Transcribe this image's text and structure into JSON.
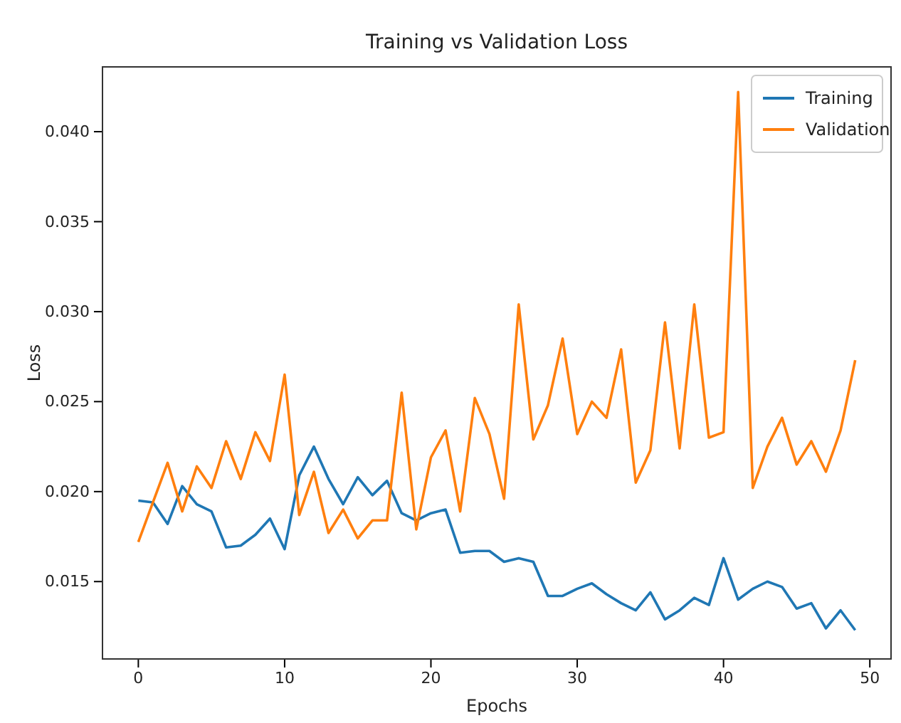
{
  "chart_data": {
    "type": "line",
    "title": "Training vs Validation Loss",
    "xlabel": "Epochs",
    "ylabel": "Loss",
    "x": [
      0,
      1,
      2,
      3,
      4,
      5,
      6,
      7,
      8,
      9,
      10,
      11,
      12,
      13,
      14,
      15,
      16,
      17,
      18,
      19,
      20,
      21,
      22,
      23,
      24,
      25,
      26,
      27,
      28,
      29,
      30,
      31,
      32,
      33,
      34,
      35,
      36,
      37,
      38,
      39,
      40,
      41,
      42,
      43,
      44,
      45,
      46,
      47,
      48,
      49
    ],
    "series": [
      {
        "name": "Training",
        "color": "#1f77b4",
        "values": [
          0.0195,
          0.0194,
          0.0182,
          0.0203,
          0.0193,
          0.0189,
          0.0169,
          0.017,
          0.0176,
          0.0185,
          0.0168,
          0.0209,
          0.0225,
          0.0207,
          0.0193,
          0.0208,
          0.0198,
          0.0206,
          0.0188,
          0.0184,
          0.0188,
          0.019,
          0.0166,
          0.0167,
          0.0167,
          0.0161,
          0.0163,
          0.0161,
          0.0142,
          0.0142,
          0.0146,
          0.0149,
          0.0143,
          0.0138,
          0.0134,
          0.0144,
          0.0129,
          0.0134,
          0.0141,
          0.0137,
          0.0163,
          0.014,
          0.0146,
          0.015,
          0.0147,
          0.0135,
          0.0138,
          0.0124,
          0.0134,
          0.0123
        ]
      },
      {
        "name": "Validation",
        "color": "#ff7f0e",
        "values": [
          0.0172,
          0.0194,
          0.0216,
          0.0189,
          0.0214,
          0.0202,
          0.0228,
          0.0207,
          0.0233,
          0.0217,
          0.0265,
          0.0187,
          0.0211,
          0.0177,
          0.019,
          0.0174,
          0.0184,
          0.0184,
          0.0255,
          0.0179,
          0.0219,
          0.0234,
          0.0189,
          0.0252,
          0.0232,
          0.0196,
          0.0304,
          0.0229,
          0.0248,
          0.0285,
          0.0232,
          0.025,
          0.0241,
          0.0279,
          0.0205,
          0.0223,
          0.0294,
          0.0224,
          0.0304,
          0.023,
          0.0233,
          0.0422,
          0.0202,
          0.0225,
          0.0241,
          0.0215,
          0.0228,
          0.0211,
          0.0234,
          0.0273
        ]
      }
    ],
    "xlim": [
      -2.45,
      51.45
    ],
    "xticks": [
      0,
      10,
      20,
      30,
      40,
      50
    ],
    "ylim": [
      0.0107,
      0.0436
    ],
    "yticks": [
      {
        "value": 0.015,
        "label": "0.015"
      },
      {
        "value": 0.02,
        "label": "0.020"
      },
      {
        "value": 0.025,
        "label": "0.025"
      },
      {
        "value": 0.03,
        "label": "0.030"
      },
      {
        "value": 0.035,
        "label": "0.035"
      },
      {
        "value": 0.04,
        "label": "0.040"
      }
    ],
    "legend": "top right",
    "grid": false,
    "marker": "none",
    "line_style": "solid"
  }
}
